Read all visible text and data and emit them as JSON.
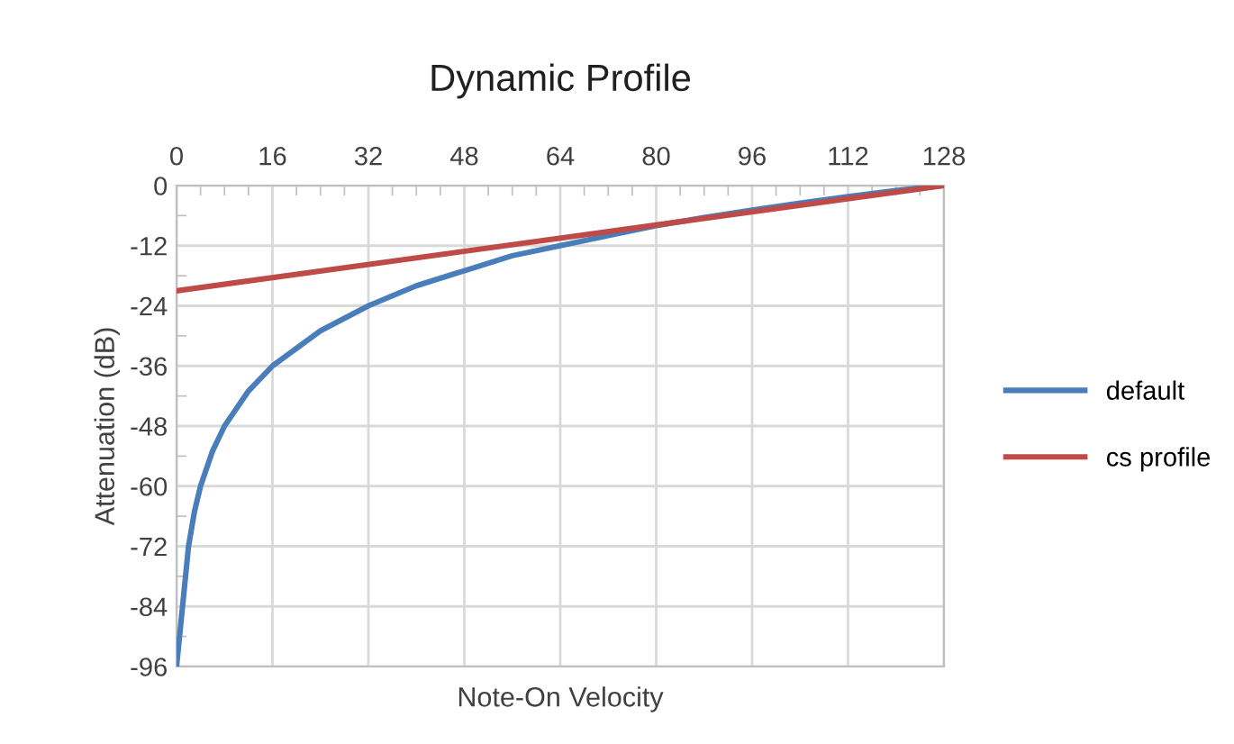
{
  "chart_data": {
    "type": "line",
    "title": "Dynamic Profile",
    "xlabel": "Note-On Velocity",
    "ylabel": "Attenuation (dB)",
    "xlim": [
      0,
      128
    ],
    "xticks": [
      0,
      16,
      32,
      48,
      64,
      80,
      96,
      112,
      128
    ],
    "ylim": [
      -96,
      0
    ],
    "yticks": [
      0,
      -12,
      -24,
      -36,
      -48,
      -60,
      -72,
      -84,
      -96
    ],
    "grid": true,
    "legend": "right",
    "marker": "none",
    "line_style": "solid",
    "series": [
      {
        "name": "default",
        "color": "#4a7ebb",
        "x": [
          0,
          1,
          2,
          3,
          4,
          6,
          8,
          12,
          16,
          24,
          32,
          40,
          48,
          56,
          64,
          72,
          80,
          88,
          96,
          104,
          112,
          120,
          128
        ],
        "values": [
          -96,
          -84,
          -72,
          -65,
          -60,
          -53,
          -48,
          -41,
          -36,
          -29,
          -24,
          -20,
          -17,
          -14,
          -12,
          -10,
          -8,
          -6.4,
          -4.9,
          -3.5,
          -2.2,
          -1,
          0
        ]
      },
      {
        "name": "cs profile",
        "color": "#be4b48",
        "x": [
          0,
          128
        ],
        "values": [
          -21,
          0
        ]
      }
    ]
  }
}
